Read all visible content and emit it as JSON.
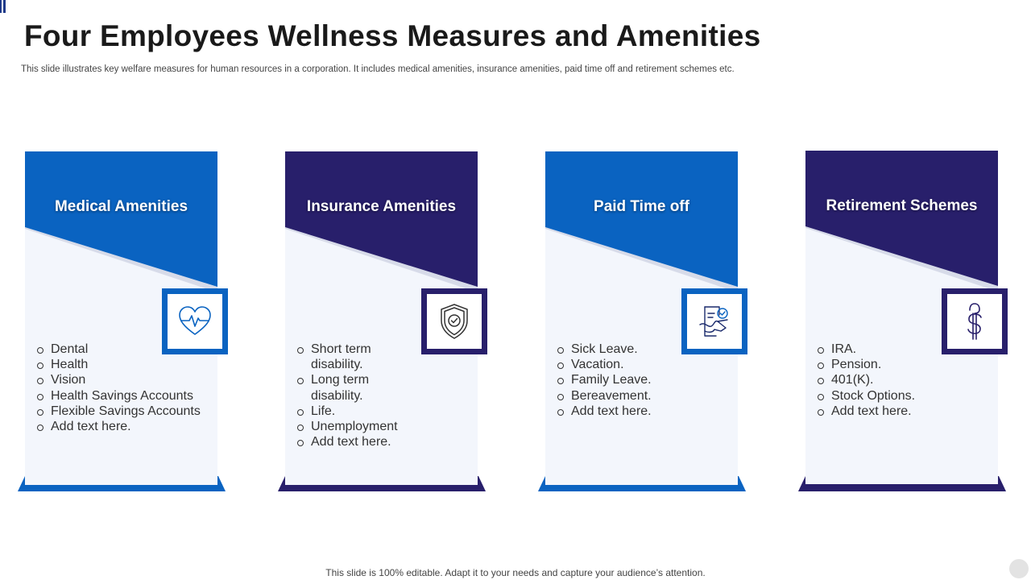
{
  "slide": {
    "title": "Four Employees Wellness Measures and Amenities",
    "subtitle": "This slide illustrates key welfare measures for human resources in a corporation. It includes medical amenities, insurance amenities, paid time off and retirement schemes etc.",
    "footer": "This slide is 100% editable. Adapt it to your needs and capture your audience’s attention."
  },
  "colors": {
    "blue": "#0a63c1",
    "navy": "#281f6b",
    "card_bg": "#f3f6fc",
    "fold_shadow": "#d7dbe9"
  },
  "cards": [
    {
      "title": "Medical Amenities",
      "icon": "heartbeat-icon",
      "color": "#0a63c1",
      "items": [
        "Dental",
        "Health",
        "Vision",
        "Health Savings Accounts",
        "Flexible Savings Accounts",
        "Add text here."
      ]
    },
    {
      "title": "Insurance Amenities",
      "icon": "shield-check-icon",
      "color": "#281f6b",
      "items": [
        "Short term\ndisability.",
        "Long term\ndisability.",
        "Life.",
        "Unemployment",
        "Add text here."
      ]
    },
    {
      "title": "Paid Time off",
      "icon": "leave-document-icon",
      "color": "#0a63c1",
      "items": [
        "Sick Leave.",
        "Vacation.",
        "Family Leave.",
        "Bereavement.",
        "Add text here."
      ]
    },
    {
      "title": "Retirement Schemes",
      "icon": "dollar-icon",
      "color": "#281f6b",
      "items": [
        "IRA.",
        "Pension.",
        "401(K).",
        "Stock Options.",
        "Add text here."
      ]
    }
  ]
}
